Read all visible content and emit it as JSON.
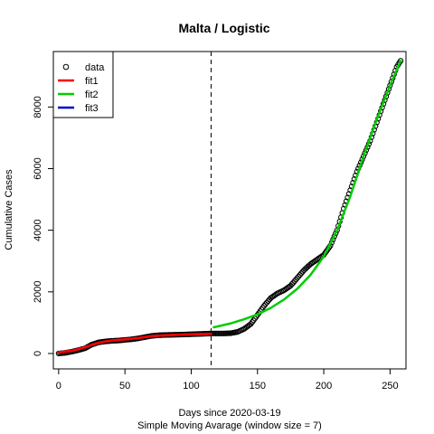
{
  "chart_data": {
    "type": "scatter",
    "title": "Malta / Logistic",
    "xlabel": "Days since 2020-03-19",
    "xlabel2": "Simple Moving Avarage (window size = 7)",
    "ylabel": "Cumulative Cases",
    "xlim": [
      -4,
      262
    ],
    "ylim": [
      -500,
      9800
    ],
    "xticks": [
      0,
      50,
      100,
      150,
      200,
      250
    ],
    "yticks": [
      0,
      2000,
      4000,
      6000,
      8000
    ],
    "vline_x": 115,
    "legend": {
      "position": "top-left",
      "entries": [
        {
          "label": "data",
          "type": "point",
          "color": "#000000"
        },
        {
          "label": "fit1",
          "type": "line",
          "color": "#ff0000"
        },
        {
          "label": "fit2",
          "type": "line",
          "color": "#00cd00"
        },
        {
          "label": "fit3",
          "type": "line",
          "color": "#0000cc"
        }
      ]
    },
    "series": [
      {
        "name": "data",
        "kind": "points",
        "color": "#000000",
        "points": [
          [
            0,
            0
          ],
          [
            5,
            20
          ],
          [
            10,
            60
          ],
          [
            15,
            110
          ],
          [
            20,
            170
          ],
          [
            25,
            290
          ],
          [
            28,
            330
          ],
          [
            30,
            360
          ],
          [
            35,
            390
          ],
          [
            40,
            410
          ],
          [
            45,
            420
          ],
          [
            50,
            440
          ],
          [
            55,
            460
          ],
          [
            60,
            490
          ],
          [
            65,
            530
          ],
          [
            70,
            570
          ],
          [
            75,
            590
          ],
          [
            80,
            600
          ],
          [
            90,
            610
          ],
          [
            100,
            625
          ],
          [
            110,
            640
          ],
          [
            115,
            650
          ],
          [
            120,
            650
          ],
          [
            125,
            650
          ],
          [
            130,
            660
          ],
          [
            135,
            700
          ],
          [
            140,
            800
          ],
          [
            145,
            960
          ],
          [
            150,
            1250
          ],
          [
            155,
            1550
          ],
          [
            160,
            1800
          ],
          [
            165,
            1950
          ],
          [
            170,
            2050
          ],
          [
            175,
            2200
          ],
          [
            180,
            2450
          ],
          [
            185,
            2700
          ],
          [
            190,
            2900
          ],
          [
            195,
            3050
          ],
          [
            200,
            3200
          ],
          [
            205,
            3500
          ],
          [
            210,
            4000
          ],
          [
            215,
            4700
          ],
          [
            220,
            5300
          ],
          [
            225,
            5900
          ],
          [
            230,
            6400
          ],
          [
            235,
            6900
          ],
          [
            240,
            7500
          ],
          [
            245,
            8100
          ],
          [
            250,
            8700
          ],
          [
            255,
            9300
          ],
          [
            258,
            9500
          ]
        ]
      },
      {
        "name": "fit1",
        "kind": "line",
        "color": "#ff0000",
        "points": [
          [
            0,
            40
          ],
          [
            5,
            60
          ],
          [
            10,
            90
          ],
          [
            15,
            140
          ],
          [
            20,
            210
          ],
          [
            25,
            280
          ],
          [
            30,
            340
          ],
          [
            35,
            390
          ],
          [
            40,
            420
          ],
          [
            45,
            440
          ],
          [
            50,
            460
          ],
          [
            60,
            500
          ],
          [
            70,
            560
          ],
          [
            80,
            590
          ],
          [
            90,
            610
          ],
          [
            100,
            620
          ],
          [
            110,
            630
          ],
          [
            115,
            640
          ]
        ]
      },
      {
        "name": "fit2",
        "kind": "line",
        "color": "#00cd00",
        "points": [
          [
            117,
            850
          ],
          [
            120,
            880
          ],
          [
            130,
            980
          ],
          [
            140,
            1110
          ],
          [
            150,
            1270
          ],
          [
            160,
            1480
          ],
          [
            170,
            1750
          ],
          [
            180,
            2100
          ],
          [
            190,
            2550
          ],
          [
            200,
            3150
          ],
          [
            210,
            4000
          ],
          [
            220,
            5100
          ],
          [
            230,
            6400
          ],
          [
            240,
            7600
          ],
          [
            250,
            8700
          ],
          [
            258,
            9500
          ]
        ]
      }
    ]
  }
}
